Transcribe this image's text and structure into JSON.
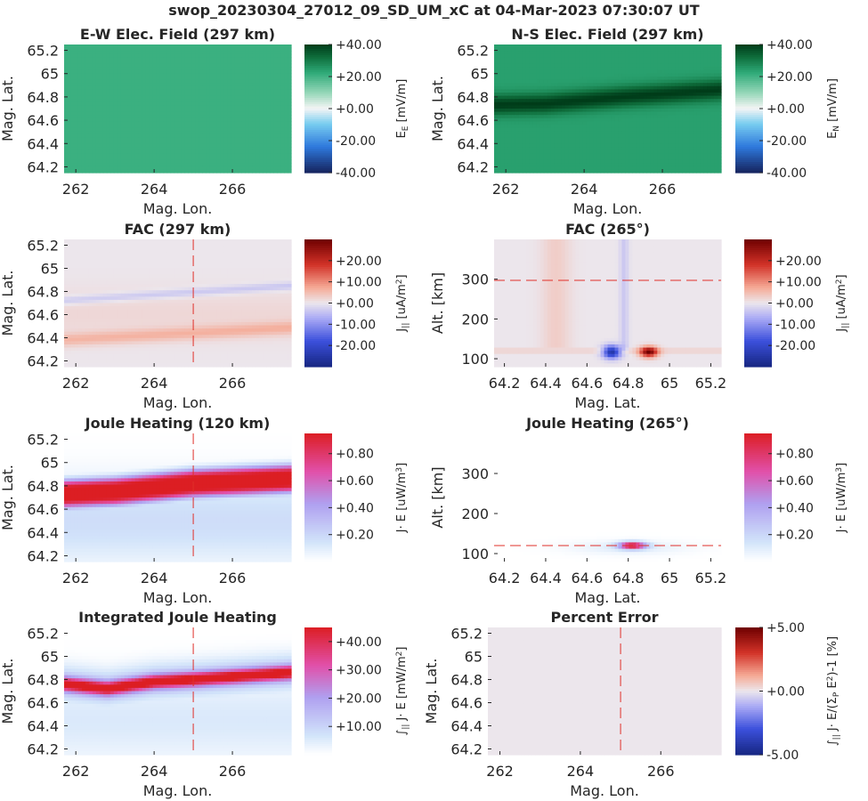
{
  "suptitle": "swop_20230304_27012_09_SD_UM_xC at 04-Mar-2023 07:30:07 UT",
  "chart_data": [
    {
      "id": "ew_field",
      "type": "heatmap",
      "title": "E-W Elec. Field (297 km)",
      "xlabel": "Mag. Lon.",
      "ylabel": "Mag. Lat.",
      "xlim": [
        261.7,
        267.5
      ],
      "ylim": [
        64.15,
        65.25
      ],
      "xticks": [
        "262",
        "264",
        "266"
      ],
      "xtick_values": [
        262,
        264,
        266
      ],
      "yticks": [
        "64.2",
        "64.4",
        "64.6",
        "64.8",
        "65",
        "65.2"
      ],
      "ytick_values": [
        64.2,
        64.4,
        64.6,
        64.8,
        65,
        65.2
      ],
      "colorbar": {
        "label": "E_E [mV/m]",
        "colormap": "green-white-blue",
        "ticks": [
          "+40.00",
          "+20.00",
          "+0.00",
          "-20.00",
          "-40.00"
        ],
        "tick_values": [
          40,
          20,
          0,
          -20,
          -40
        ],
        "range": [
          -40,
          40
        ]
      },
      "field": {
        "kind": "uniform",
        "level": 0.76
      }
    },
    {
      "id": "ns_field",
      "type": "heatmap",
      "title": "N-S Elec. Field (297 km)",
      "xlabel": "Mag. Lon.",
      "ylabel": "Mag. Lat.",
      "xlim": [
        261.7,
        267.5
      ],
      "ylim": [
        64.15,
        65.25
      ],
      "xticks": [
        "262",
        "264",
        "266"
      ],
      "xtick_values": [
        262,
        264,
        266
      ],
      "yticks": [
        "64.2",
        "64.4",
        "64.6",
        "64.8",
        "65",
        "65.2"
      ],
      "ytick_values": [
        64.2,
        64.4,
        64.6,
        64.8,
        65,
        65.2
      ],
      "colorbar": {
        "label": "E_N [mV/m]",
        "colormap": "green-white-blue",
        "ticks": [
          "+40.00",
          "+20.00",
          "+0.00",
          "-20.00",
          "-40.00"
        ],
        "tick_values": [
          40,
          20,
          0,
          -20,
          -40
        ],
        "range": [
          -40,
          40
        ]
      },
      "field": {
        "kind": "band",
        "background": 0.8,
        "peak": 1.0,
        "center": [
          [
            261.7,
            64.73
          ],
          [
            263,
            64.74
          ],
          [
            265,
            64.8
          ],
          [
            267.5,
            64.86
          ]
        ],
        "halfwidth": 0.06
      }
    },
    {
      "id": "fac_map",
      "type": "heatmap",
      "title": "FAC (297 km)",
      "xlabel": "Mag. Lon.",
      "ylabel": "Mag. Lat.",
      "xlim": [
        261.7,
        267.5
      ],
      "ylim": [
        64.15,
        65.25
      ],
      "xticks": [
        "262",
        "264",
        "266"
      ],
      "xtick_values": [
        262,
        264,
        266
      ],
      "yticks": [
        "64.2",
        "64.4",
        "64.6",
        "64.8",
        "65",
        "65.2"
      ],
      "ytick_values": [
        64.2,
        64.4,
        64.6,
        64.8,
        65,
        65.2
      ],
      "colorbar": {
        "label": "J_|| [uA/m^2]",
        "colormap": "red-white-blue",
        "ticks": [
          "+20.00",
          "+10.00",
          "+0.00",
          "-10.00",
          "-20.00"
        ],
        "tick_values": [
          20,
          10,
          0,
          -10,
          -20
        ],
        "range": [
          -30,
          30
        ]
      },
      "field": {
        "kind": "fac_map"
      },
      "reference_lines": [
        {
          "axis": "x",
          "value": 265
        }
      ]
    },
    {
      "id": "fac_alt",
      "type": "heatmap",
      "title": "FAC (265°)",
      "xlabel": "Mag. Lat.",
      "ylabel": "Alt. [km]",
      "xlim": [
        64.15,
        65.25
      ],
      "ylim": [
        80,
        400
      ],
      "xticks": [
        "64.2",
        "64.4",
        "64.6",
        "64.8",
        "65",
        "65.2"
      ],
      "xtick_values": [
        64.2,
        64.4,
        64.6,
        64.8,
        65,
        65.2
      ],
      "yticks": [
        "100",
        "200",
        "300"
      ],
      "ytick_values": [
        100,
        200,
        300
      ],
      "colorbar": {
        "label": "J_|| [uA/m^2]",
        "colormap": "red-white-blue",
        "ticks": [
          "+20.00",
          "+10.00",
          "+0.00",
          "-10.00",
          "-20.00"
        ],
        "tick_values": [
          20,
          10,
          0,
          -10,
          -20
        ],
        "range": [
          -30,
          30
        ]
      },
      "field": {
        "kind": "fac_alt"
      },
      "reference_lines": [
        {
          "axis": "y",
          "value": 297
        }
      ]
    },
    {
      "id": "joule_map",
      "type": "heatmap",
      "title": "Joule Heating (120 km)",
      "xlabel": "Mag. Lon.",
      "ylabel": "Mag. Lat.",
      "xlim": [
        261.7,
        267.5
      ],
      "ylim": [
        64.15,
        65.25
      ],
      "xticks": [
        "262",
        "264",
        "266"
      ],
      "xtick_values": [
        262,
        264,
        266
      ],
      "yticks": [
        "64.2",
        "64.4",
        "64.6",
        "64.8",
        "65",
        "65.2"
      ],
      "ytick_values": [
        64.2,
        64.4,
        64.6,
        64.8,
        65,
        65.2
      ],
      "colorbar": {
        "label": "J· E [uW/m^3]",
        "colormap": "white-blue-red",
        "ticks": [
          "+0.80",
          "+0.60",
          "+0.40",
          "+0.20"
        ],
        "tick_values": [
          0.8,
          0.6,
          0.4,
          0.2
        ],
        "range": [
          0,
          0.95
        ]
      },
      "field": {
        "kind": "joule_map"
      },
      "reference_lines": [
        {
          "axis": "x",
          "value": 265
        }
      ]
    },
    {
      "id": "joule_alt",
      "type": "heatmap",
      "title": "Joule Heating (265°)",
      "xlabel": "Mag. Lat.",
      "ylabel": "Alt. [km]",
      "xlim": [
        64.15,
        65.25
      ],
      "ylim": [
        80,
        400
      ],
      "xticks": [
        "64.2",
        "64.4",
        "64.6",
        "64.8",
        "65",
        "65.2"
      ],
      "xtick_values": [
        64.2,
        64.4,
        64.6,
        64.8,
        65,
        65.2
      ],
      "yticks": [
        "100",
        "200",
        "300"
      ],
      "ytick_values": [
        100,
        200,
        300
      ],
      "colorbar": {
        "label": "J· E [uW/m^3]",
        "colormap": "white-blue-red",
        "ticks": [
          "+0.80",
          "+0.60",
          "+0.40",
          "+0.20"
        ],
        "tick_values": [
          0.8,
          0.6,
          0.4,
          0.2
        ],
        "range": [
          0,
          0.95
        ]
      },
      "field": {
        "kind": "joule_alt"
      },
      "reference_lines": [
        {
          "axis": "y",
          "value": 120
        }
      ]
    },
    {
      "id": "int_joule",
      "type": "heatmap",
      "title": "Integrated Joule Heating",
      "xlabel": "Mag. Lon.",
      "ylabel": "Mag. Lat.",
      "xlim": [
        261.7,
        267.5
      ],
      "ylim": [
        64.15,
        65.25
      ],
      "xticks": [
        "262",
        "264",
        "266"
      ],
      "xtick_values": [
        262,
        264,
        266
      ],
      "yticks": [
        "64.2",
        "64.4",
        "64.6",
        "64.8",
        "65",
        "65.2"
      ],
      "ytick_values": [
        64.2,
        64.4,
        64.6,
        64.8,
        65,
        65.2
      ],
      "colorbar": {
        "label": "∫_|| J· E [mW/m^2]",
        "colormap": "white-blue-red",
        "ticks": [
          "+40.00",
          "+30.00",
          "+20.00",
          "+10.00"
        ],
        "tick_values": [
          40,
          30,
          20,
          10
        ],
        "range": [
          0,
          45
        ]
      },
      "field": {
        "kind": "int_joule"
      },
      "reference_lines": [
        {
          "axis": "x",
          "value": 265
        }
      ]
    },
    {
      "id": "pct_err",
      "type": "heatmap",
      "title": "Percent Error",
      "xlabel": "Mag. Lon.",
      "ylabel": "Mag. Lat.",
      "xlim": [
        261.7,
        267.5
      ],
      "ylim": [
        64.15,
        65.25
      ],
      "xticks": [
        "262",
        "264",
        "266"
      ],
      "xtick_values": [
        262,
        264,
        266
      ],
      "yticks": [
        "64.2",
        "64.4",
        "64.6",
        "64.8",
        "65",
        "65.2"
      ],
      "ytick_values": [
        64.2,
        64.4,
        64.6,
        64.8,
        65,
        65.2
      ],
      "colorbar": {
        "label": "∫_|| J· E/(Σ_P E^2)-1 [%]",
        "colormap": "red-white-blue",
        "ticks": [
          "+5.00",
          "+0.00",
          "-5.00"
        ],
        "tick_values": [
          5,
          0,
          -5
        ],
        "range": [
          -5,
          5
        ]
      },
      "field": {
        "kind": "uniform",
        "level": 0.5
      },
      "reference_lines": [
        {
          "axis": "x",
          "value": 265
        }
      ]
    }
  ]
}
